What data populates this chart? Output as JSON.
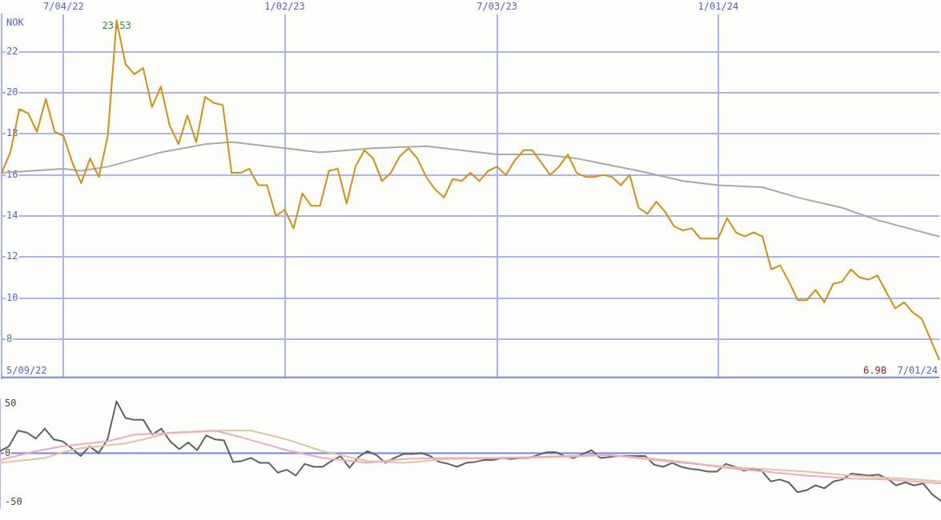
{
  "chart_data": [
    {
      "type": "line",
      "ylabel": "NOK",
      "grid": true,
      "marker": "none",
      "line_style": "solid",
      "categories": [
        null,
        null,
        null,
        null,
        null,
        null,
        null,
        "7/04/22",
        null,
        null,
        null,
        null,
        null,
        null,
        null,
        null,
        null,
        null,
        null,
        null,
        null,
        null,
        null,
        null,
        null,
        null,
        null,
        null,
        null,
        null,
        null,
        null,
        "1/02/23",
        null,
        null,
        null,
        null,
        null,
        null,
        null,
        null,
        null,
        null,
        null,
        null,
        null,
        null,
        null,
        null,
        null,
        null,
        null,
        null,
        null,
        null,
        null,
        "7/03/23",
        null,
        null,
        null,
        null,
        null,
        null,
        null,
        null,
        null,
        null,
        null,
        null,
        null,
        null,
        null,
        null,
        null,
        null,
        null,
        null,
        null,
        null,
        null,
        null,
        "1/01/24",
        null,
        null,
        null,
        null,
        null,
        null,
        null,
        null,
        null,
        null,
        null,
        null,
        null,
        null,
        null,
        null,
        null,
        null,
        null,
        null,
        null,
        null,
        null,
        null,
        null
      ],
      "ylim": [
        6.1,
        23.8
      ],
      "yticks": [
        8,
        10,
        12,
        14,
        16,
        18,
        20,
        22
      ],
      "series": [
        {
          "color": "#d4900a",
          "values": [
            16.1,
            17.1,
            19.2,
            19.0,
            18.1,
            19.7,
            18.1,
            17.9,
            16.6,
            15.6,
            16.8,
            15.9,
            17.9,
            23.53,
            21.4,
            20.9,
            21.2,
            19.3,
            20.3,
            18.4,
            17.5,
            18.9,
            17.6,
            19.8,
            19.5,
            19.4,
            16.1,
            16.1,
            16.3,
            15.5,
            15.5,
            14.0,
            14.3,
            13.4,
            15.1,
            14.5,
            14.5,
            16.2,
            16.3,
            14.6,
            16.4,
            17.2,
            16.8,
            15.7,
            16.1,
            16.9,
            17.3,
            16.8,
            15.9,
            15.3,
            14.9,
            15.8,
            15.7,
            16.1,
            15.7,
            16.2,
            16.4,
            16.0,
            16.7,
            17.2,
            17.2,
            16.6,
            16.0,
            16.4,
            17.0,
            16.1,
            15.9,
            15.9,
            16.0,
            15.9,
            15.5,
            16.0,
            14.4,
            14.1,
            14.7,
            14.2,
            13.5,
            13.3,
            13.4,
            12.9,
            12.9,
            12.9,
            13.9,
            13.2,
            13.0,
            13.2,
            13.0,
            11.4,
            11.6,
            10.8,
            9.9,
            9.9,
            10.4,
            9.8,
            10.7,
            10.8,
            11.4,
            11.0,
            10.9,
            11.1,
            10.3,
            9.5,
            9.8,
            9.3,
            9.0,
            8.0,
            6.98
          ]
        },
        {
          "color": "#a8a8a8",
          "values": [
            16.1,
            null,
            null,
            null,
            null,
            null,
            null,
            16.3,
            null,
            16.2,
            null,
            null,
            16.4,
            null,
            null,
            null,
            null,
            null,
            17.1,
            null,
            null,
            null,
            null,
            17.5,
            null,
            null,
            17.6,
            null,
            null,
            null,
            null,
            null,
            17.3,
            null,
            null,
            null,
            17.1,
            null,
            null,
            null,
            null,
            null,
            17.3,
            null,
            null,
            null,
            null,
            null,
            17.4,
            null,
            null,
            null,
            null,
            null,
            null,
            null,
            17.0,
            null,
            null,
            null,
            null,
            17.0,
            null,
            null,
            null,
            16.8,
            null,
            null,
            null,
            null,
            null,
            null,
            16.2,
            null,
            null,
            null,
            null,
            15.7,
            null,
            null,
            null,
            15.5,
            null,
            null,
            null,
            null,
            15.4,
            null,
            null,
            null,
            14.9,
            null,
            null,
            null,
            null,
            14.4,
            null,
            null,
            null,
            13.8,
            null,
            null,
            null,
            null,
            null,
            null,
            13.0
          ]
        }
      ],
      "annotations": [
        {
          "text": "23.53",
          "y": 23.53
        },
        "5/09/22",
        "6.98",
        "7/01/24"
      ]
    },
    {
      "type": "line",
      "grid": false,
      "marker": "none",
      "line_style": "solid",
      "tick_labels": "y",
      "categories": [
        null,
        null,
        null,
        null,
        null,
        null,
        null,
        null,
        null,
        null,
        null,
        null,
        null,
        null,
        null,
        null,
        null,
        null,
        null,
        null,
        null,
        null,
        null,
        null,
        null,
        null,
        null,
        null,
        null,
        null,
        null,
        null,
        null,
        null,
        null,
        null,
        null,
        null,
        null,
        null,
        null,
        null,
        null,
        null,
        null,
        null,
        null,
        null,
        null,
        null,
        null,
        null,
        null,
        null,
        null,
        null,
        null,
        null,
        null,
        null,
        null,
        null,
        null,
        null,
        null,
        null,
        null,
        null,
        null,
        null,
        null,
        null,
        null,
        null,
        null,
        null,
        null,
        null,
        null,
        null,
        null,
        null,
        null,
        null,
        null,
        null,
        null,
        null,
        null,
        null,
        null,
        null,
        null,
        null,
        null,
        null,
        null,
        null,
        null,
        null,
        null,
        null,
        null,
        null,
        null,
        null
      ],
      "ylim": [
        -56,
        55
      ],
      "yticks": [
        -50,
        0,
        50
      ],
      "ref_lines": [
        {
          "axis": "y",
          "value": 0,
          "color": "#6f82f0"
        }
      ],
      "series": [
        {
          "color": "#f4a8c0",
          "values": [
            -7,
            null,
            null,
            null,
            2,
            null,
            null,
            7,
            null,
            null,
            null,
            null,
            12,
            null,
            null,
            19,
            null,
            null,
            null,
            null,
            21,
            null,
            null,
            null,
            23,
            null,
            null,
            16,
            null,
            null,
            null,
            null,
            3,
            null,
            null,
            null,
            -5,
            null,
            null,
            null,
            null,
            -10,
            null,
            null,
            null,
            -6,
            null,
            null,
            null,
            null,
            -5,
            null,
            null,
            null,
            null,
            null,
            -5,
            null,
            null,
            null,
            null,
            null,
            null,
            -3,
            null,
            null,
            null,
            null,
            -2,
            null,
            null,
            null,
            -5,
            null,
            null,
            null,
            null,
            -10,
            null,
            null,
            null,
            -15,
            null,
            null,
            null,
            null,
            null,
            null,
            null,
            null,
            -23,
            null,
            null,
            null,
            null,
            -26,
            null,
            null,
            null,
            -27,
            null,
            null,
            null,
            null,
            null,
            -31
          ]
        },
        {
          "color": "#e2c49a",
          "values": [
            -10,
            null,
            null,
            null,
            null,
            -5,
            null,
            1,
            null,
            5,
            null,
            null,
            null,
            null,
            10,
            null,
            14,
            null,
            null,
            21,
            null,
            null,
            null,
            null,
            null,
            23,
            null,
            null,
            23,
            null,
            null,
            null,
            14,
            null,
            null,
            null,
            2,
            null,
            null,
            null,
            null,
            -8,
            null,
            null,
            null,
            -10,
            null,
            null,
            null,
            null,
            -6,
            null,
            null,
            null,
            null,
            null,
            -5,
            null,
            null,
            null,
            null,
            null,
            null,
            -4,
            null,
            null,
            null,
            null,
            -2,
            null,
            null,
            null,
            null,
            null,
            -8,
            null,
            null,
            null,
            null,
            null,
            null,
            -14,
            null,
            null,
            null,
            null,
            null,
            null,
            null,
            null,
            -19,
            null,
            null,
            null,
            null,
            -23,
            null,
            null,
            null,
            null,
            null,
            null,
            -27,
            null,
            null,
            -29
          ]
        },
        {
          "color": "#606060",
          "values": [
            2,
            7,
            23,
            21,
            15,
            25,
            14,
            12,
            5,
            -3,
            7,
            0,
            14,
            53,
            36,
            34,
            34,
            19,
            25,
            12,
            4,
            11,
            3,
            18,
            14,
            13,
            -9,
            -8,
            -5,
            -10,
            -10,
            -20,
            -17,
            -23,
            -11,
            -14,
            -14,
            -8,
            -3,
            -15,
            -4,
            2,
            -2,
            -10,
            -5,
            -1,
            -1,
            0,
            -3,
            -9,
            -11,
            -14,
            -10,
            -9,
            -7,
            -7,
            -5,
            -6,
            -5,
            -5,
            -2,
            1,
            1,
            -3,
            -5,
            -1,
            3,
            -5,
            -4,
            -3,
            -3,
            -3,
            -3,
            -12,
            -14,
            -10,
            -14,
            -16,
            -17,
            -19,
            -19,
            -11,
            -14,
            -18,
            -16,
            -18,
            -29,
            -27,
            -30,
            -40,
            -38,
            -33,
            -36,
            -29,
            -27,
            -21,
            -22,
            -23,
            -22,
            -26,
            -33,
            -30,
            -33,
            -31,
            -42,
            -49
          ]
        }
      ]
    }
  ]
}
